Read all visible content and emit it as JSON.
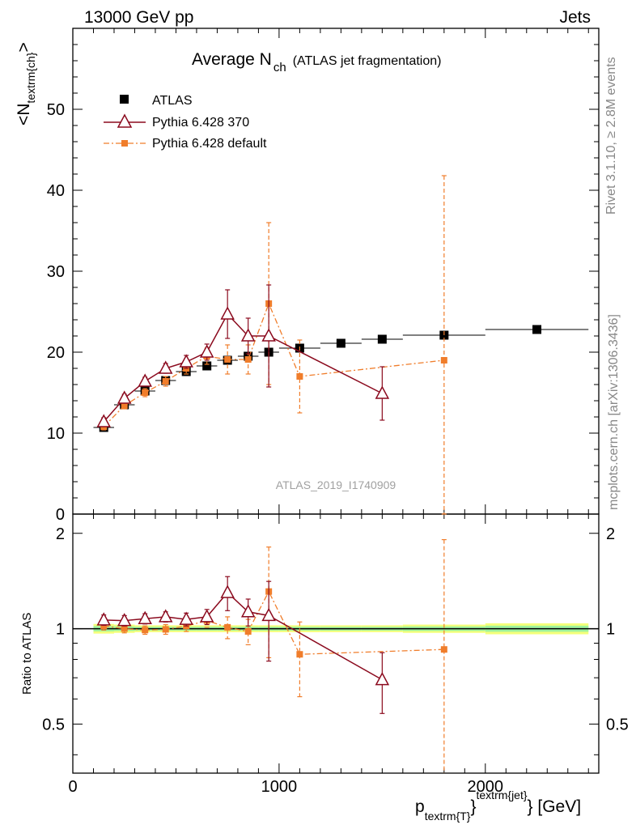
{
  "header": {
    "left": "13000 GeV pp",
    "right": "Jets"
  },
  "side_texts": {
    "rivet": "Rivet 3.1.10, ≥ 2.8M events",
    "mcplots": "mcplots.cern.ch [arXiv:1306.3436]"
  },
  "chart_data": {
    "type": "scatter",
    "title": "Average N",
    "title_sub": "ch",
    "title_suffix": "(ATLAS jet fragmentation)",
    "analysis_label": "ATLAS_2019_I1740909",
    "ylabel": "<N",
    "ylabel_sub": "textrm{ch}",
    "ylabel_end": ">",
    "xlabel_main": "p",
    "xlabel_sub": "textrm{T}",
    "xlabel_sup": "textrm{jet}",
    "xlabel_end": "} [GeV]",
    "xlim": [
      0,
      2550
    ],
    "ylim": [
      0,
      60
    ],
    "ratio_ylabel": "Ratio to ATLAS",
    "ratio_ylim": [
      0.35,
      2.3
    ],
    "x_ticks": [
      {
        "value": 0,
        "label": "0"
      },
      {
        "value": 1000,
        "label": "1000"
      },
      {
        "value": 2000,
        "label": "2000"
      }
    ],
    "y_ticks": [
      {
        "value": 0,
        "label": "0"
      },
      {
        "value": 10,
        "label": "10"
      },
      {
        "value": 20,
        "label": "20"
      },
      {
        "value": 30,
        "label": "30"
      },
      {
        "value": 40,
        "label": "40"
      },
      {
        "value": 50,
        "label": "50"
      }
    ],
    "ratio_ticks": [
      {
        "value": 0.5,
        "label": "0.5"
      },
      {
        "value": 1,
        "label": "1"
      },
      {
        "value": 2,
        "label": "2"
      }
    ],
    "series": [
      {
        "name": "ATLAS",
        "color": "#000000",
        "style": "data",
        "x": [
          150,
          250,
          350,
          450,
          550,
          650,
          750,
          850,
          950,
          1100,
          1300,
          1500,
          1800,
          2250
        ],
        "y": [
          10.7,
          13.5,
          15.2,
          16.5,
          17.6,
          18.3,
          19.0,
          19.5,
          20.0,
          20.5,
          21.1,
          21.6,
          22.1,
          22.8
        ],
        "xerr": [
          50,
          50,
          50,
          50,
          50,
          50,
          50,
          50,
          50,
          100,
          100,
          100,
          200,
          250
        ],
        "ratio_band": [
          0.035,
          0.03,
          0.025,
          0.025,
          0.025,
          0.025,
          0.025,
          0.025,
          0.025,
          0.025,
          0.025,
          0.025,
          0.03,
          0.04
        ]
      },
      {
        "name": "Pythia 6.428 370",
        "color": "#8b0a1e",
        "style": "triangle",
        "x": [
          150,
          250,
          350,
          450,
          550,
          650,
          750,
          850,
          950,
          1500
        ],
        "y": [
          11.4,
          14.3,
          16.4,
          18.0,
          18.8,
          20.0,
          24.7,
          22.0,
          22.0,
          14.9
        ],
        "yerr": [
          0.5,
          0.5,
          0.5,
          0.6,
          0.8,
          1.0,
          3.0,
          2.2,
          6.3,
          3.3
        ],
        "ratio": [
          1.065,
          1.06,
          1.075,
          1.09,
          1.07,
          1.09,
          1.3,
          1.13,
          1.1,
          0.69
        ],
        "ratio_err": [
          0.04,
          0.04,
          0.04,
          0.04,
          0.05,
          0.06,
          0.16,
          0.11,
          0.31,
          0.15
        ]
      },
      {
        "name": "Pythia 6.428 default",
        "color": "#f07d2b",
        "style": "square-dashdot",
        "x": [
          150,
          250,
          350,
          450,
          550,
          650,
          750,
          850,
          950,
          1100,
          1800
        ],
        "y": [
          10.8,
          13.4,
          15.0,
          16.4,
          18.0,
          19.5,
          19.1,
          19.1,
          26.0,
          17.0,
          19.0
        ],
        "yerr": [
          0.4,
          0.4,
          0.5,
          0.6,
          0.7,
          1.0,
          1.8,
          1.8,
          10.0,
          4.5,
          22.8
        ],
        "ratio": [
          1.02,
          1.0,
          0.99,
          0.995,
          1.02,
          1.06,
          1.01,
          0.98,
          1.31,
          0.83,
          0.86
        ],
        "ratio_err": [
          0.03,
          0.03,
          0.03,
          0.035,
          0.04,
          0.05,
          0.08,
          0.09,
          0.5,
          0.22,
          1.05
        ]
      }
    ],
    "legend_position": "top-left"
  }
}
